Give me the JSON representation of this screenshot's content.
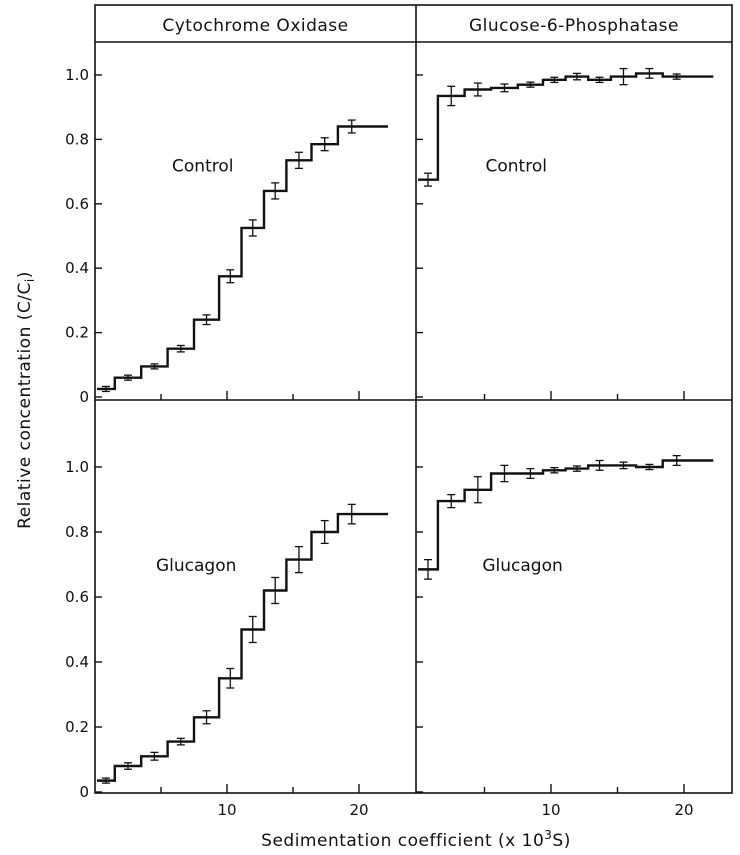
{
  "chart_data": {
    "type": "line",
    "ylabel": "Relative concentration (C/C",
    "ylabel_sub": "i",
    "ylabel_close": ")",
    "xlabel": "Sedimentation coefficient (x 10",
    "xlabel_sup": "3",
    "xlabel_end": "S)",
    "columns": [
      "Cytochrome Oxidase",
      "Glucose-6-Phosphatase"
    ],
    "yticks": [
      "0",
      "0.2",
      "0.4",
      "0.6",
      "0.8",
      "1.0"
    ],
    "xticks": [
      "10",
      "20"
    ],
    "ylim": [
      0,
      1.1
    ],
    "grid": false,
    "panels": [
      {
        "column": "Cytochrome Oxidase",
        "label": "Control",
        "x": [
          1.5,
          3.5,
          5.5,
          7.5,
          9.4,
          11.1,
          12.8,
          14.5,
          16.4,
          18.4,
          20.5,
          22.2
        ],
        "y": [
          0.025,
          0.06,
          0.095,
          0.15,
          0.24,
          0.375,
          0.525,
          0.64,
          0.735,
          0.785,
          0.84,
          0.84
        ],
        "err": [
          0.004,
          0.005,
          0.007,
          0.01,
          0.015,
          0.02,
          0.025,
          0.025,
          0.025,
          0.02,
          0.02,
          0
        ]
      },
      {
        "column": "Glucose-6-Phosphatase",
        "label": "Control",
        "x": [
          1.5,
          3.5,
          5.5,
          7.5,
          9.4,
          11.1,
          12.8,
          14.5,
          16.4,
          18.4,
          20.5,
          22.2
        ],
        "y": [
          0.675,
          0.935,
          0.955,
          0.96,
          0.97,
          0.985,
          0.995,
          0.985,
          0.995,
          1.005,
          0.995,
          0.995
        ],
        "err": [
          0.02,
          0.03,
          0.02,
          0.012,
          0.005,
          0.008,
          0.01,
          0.008,
          0.025,
          0.015,
          0.008,
          0
        ]
      },
      {
        "column": "Cytochrome Oxidase",
        "label": "Glucagon",
        "x": [
          1.5,
          3.5,
          5.5,
          7.5,
          9.4,
          11.1,
          12.8,
          14.5,
          16.4,
          18.4,
          20.5,
          22.2
        ],
        "y": [
          0.035,
          0.08,
          0.11,
          0.155,
          0.23,
          0.35,
          0.5,
          0.62,
          0.715,
          0.8,
          0.855,
          0.855
        ],
        "err": [
          0.005,
          0.01,
          0.012,
          0.01,
          0.02,
          0.03,
          0.04,
          0.04,
          0.04,
          0.035,
          0.03,
          0
        ]
      },
      {
        "column": "Glucose-6-Phosphatase",
        "label": "Glucagon",
        "x": [
          1.5,
          3.5,
          5.5,
          7.5,
          9.4,
          11.1,
          12.8,
          14.5,
          16.4,
          18.4,
          20.5,
          22.2
        ],
        "y": [
          0.685,
          0.895,
          0.93,
          0.98,
          0.98,
          0.99,
          0.995,
          1.005,
          1.005,
          1.0,
          1.02,
          1.02
        ],
        "err": [
          0.03,
          0.02,
          0.04,
          0.025,
          0.015,
          0.008,
          0.008,
          0.015,
          0.01,
          0.008,
          0.015,
          0
        ]
      }
    ]
  }
}
